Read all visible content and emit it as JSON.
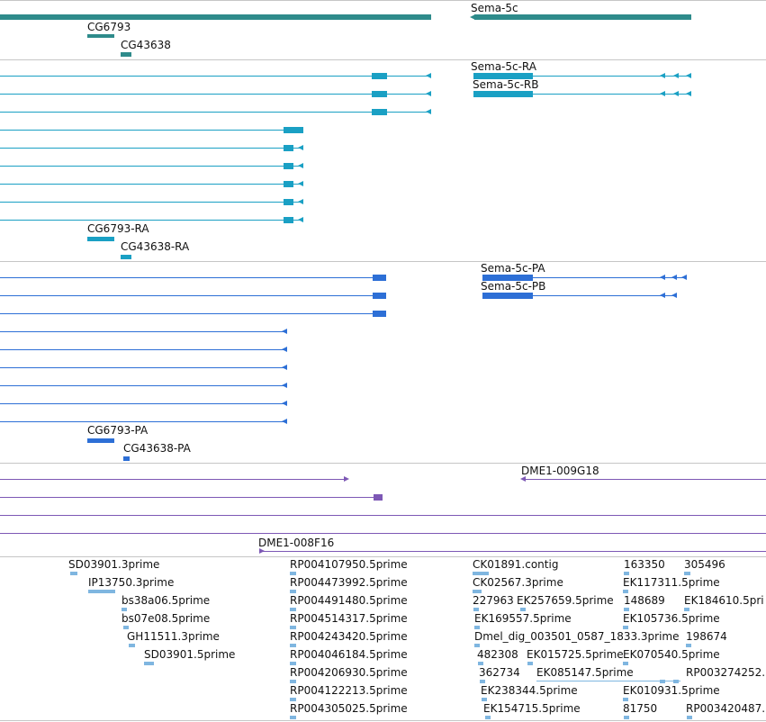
{
  "colors": {
    "gene": "#2e8b8b",
    "transcript_flybase": "#1aa0c4",
    "transcript_pa": "#2d6fd6",
    "clone": "#7d58b5",
    "est": "#7fb6e0",
    "separator": "#c6c6c6"
  },
  "gene_track": {
    "labels": [
      "Sema-5c",
      "CG6793",
      "CG43638"
    ]
  },
  "transcript_track_ra": {
    "labels": [
      "Sema-5c-RA",
      "Sema-5c-RB",
      "CG6793-RA",
      "CG43638-RA"
    ]
  },
  "transcript_track_pa": {
    "labels": [
      "Sema-5c-PA",
      "Sema-5c-PB",
      "CG6793-PA",
      "CG43638-PA"
    ]
  },
  "clone_track": {
    "labels": [
      "DME1-009G18",
      "DME1-008F16"
    ]
  },
  "est_track": {
    "col1": [
      "SD03901.3prime",
      "IP13750.3prime",
      "bs38a06.5prime",
      "bs07e08.5prime",
      "GH11511.3prime",
      "SD03901.5prime"
    ],
    "col2": [
      "RP004107950.5prime",
      "RP004473992.5prime",
      "RP004491480.5prime",
      "RP004514317.5prime",
      "RP004243420.5prime",
      "RP004046184.5prime",
      "RP004206930.5prime",
      "RP004122213.5prime",
      "RP004305025.5prime"
    ],
    "col3": [
      "CK01891.contig",
      "CK02567.3prime",
      "227963",
      "EK257659.5prime",
      "EK169557.5prime",
      "Dmel_dig_003501_0587_1833.3prime",
      "482308",
      "EK015725.5prime",
      "362734",
      "EK085147.5prime",
      "EK238344.5prime",
      "EK154715.5prime"
    ],
    "col4": [
      "163350",
      "305496",
      "EK117311.5prime",
      "148689",
      "EK184610.5pri",
      "EK105736.5prime",
      "198674",
      "EK070540.5prime",
      "RP003274252.",
      "EK010931.5prime",
      "81750",
      "RP003420487."
    ]
  }
}
